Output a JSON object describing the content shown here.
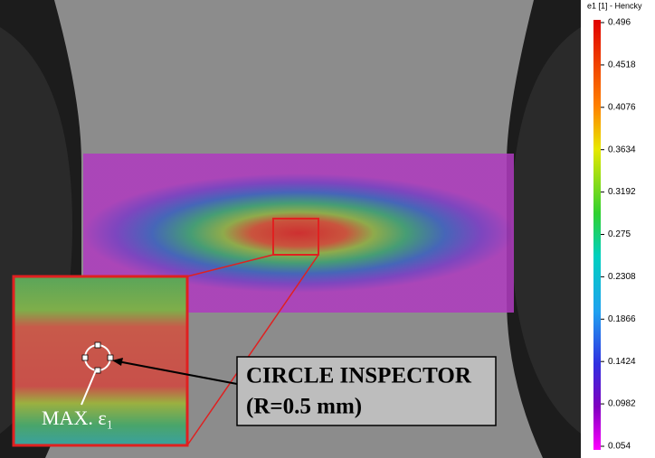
{
  "colorbar": {
    "title": "e1 [1] - Hencky",
    "ticks": [
      0.496,
      0.4518,
      0.4076,
      0.3634,
      0.3192,
      0.275,
      0.2308,
      0.1866,
      0.1424,
      0.0982,
      0.054
    ]
  },
  "annotations": {
    "inspector_line1": "CIRCLE INSPECTOR",
    "inspector_line2": "(R=0.5 mm)",
    "max_label": "MAX. ε₁"
  }
}
